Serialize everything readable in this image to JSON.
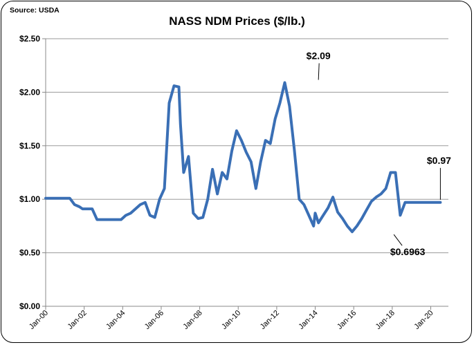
{
  "source_note": "Source: USDA",
  "chart_data": {
    "type": "line",
    "title": "NASS NDM Prices ($/lb.)",
    "xlabel": "",
    "ylabel": "",
    "ylim": [
      0,
      2.5
    ],
    "y_ticks": [
      0,
      0.5,
      1.0,
      1.5,
      2.0,
      2.5
    ],
    "y_tick_labels": [
      "$0.00",
      "$0.50",
      "$1.00",
      "$1.50",
      "$2.00",
      "$2.50"
    ],
    "x_range": [
      "2000-01",
      "2020-12"
    ],
    "x_tick_labels": [
      "Jan-00",
      "Jan-02",
      "Jan-04",
      "Jan-06",
      "Jan-08",
      "Jan-10",
      "Jan-12",
      "Jan-14",
      "Jan-16",
      "Jan-18",
      "Jan-20"
    ],
    "x_tick_dates": [
      "2000-01",
      "2002-01",
      "2004-01",
      "2006-01",
      "2008-01",
      "2010-01",
      "2012-01",
      "2014-01",
      "2016-01",
      "2018-01",
      "2020-01"
    ],
    "gridlines": "horizontal",
    "line_color": "#3a6fb5",
    "series": [
      {
        "x": [
          "2000-01",
          "2000-04",
          "2000-07",
          "2000-10",
          "2001-01",
          "2001-04",
          "2001-07",
          "2001-10",
          "2001-12",
          "2002-03",
          "2002-06",
          "2002-09",
          "2002-12",
          "2003-03",
          "2003-06",
          "2003-09",
          "2003-12",
          "2004-03",
          "2004-06",
          "2004-09",
          "2004-12",
          "2005-03",
          "2005-06",
          "2005-09",
          "2005-12",
          "2006-03",
          "2006-06",
          "2006-09",
          "2006-12",
          "2007-01",
          "2007-03",
          "2007-06",
          "2007-09",
          "2007-12",
          "2008-03",
          "2008-06",
          "2008-09",
          "2008-12",
          "2009-03",
          "2009-06",
          "2009-09",
          "2009-12",
          "2010-03",
          "2010-06",
          "2010-09",
          "2010-12",
          "2011-03",
          "2011-06",
          "2011-09",
          "2011-12",
          "2012-03",
          "2012-06",
          "2012-09",
          "2012-12",
          "2013-03",
          "2013-06",
          "2013-09",
          "2013-12",
          "2014-01",
          "2014-03",
          "2014-06",
          "2014-09",
          "2014-12",
          "2015-03",
          "2015-06",
          "2015-09",
          "2015-12",
          "2016-03",
          "2016-06",
          "2016-09",
          "2016-12",
          "2017-03",
          "2017-06",
          "2017-09",
          "2017-12",
          "2018-03",
          "2018-06",
          "2018-09",
          "2018-12",
          "2019-03",
          "2019-06",
          "2019-09",
          "2019-12",
          "2020-01",
          "2020-03",
          "2020-05",
          "2020-07"
        ],
        "y": [
          1.01,
          1.01,
          1.01,
          1.01,
          1.01,
          1.01,
          0.95,
          0.93,
          0.91,
          0.91,
          0.91,
          0.81,
          0.81,
          0.81,
          0.81,
          0.81,
          0.81,
          0.85,
          0.87,
          0.91,
          0.95,
          0.97,
          0.85,
          0.83,
          1.0,
          1.1,
          1.9,
          2.06,
          2.05,
          1.7,
          1.25,
          1.4,
          0.87,
          0.82,
          0.83,
          1.0,
          1.28,
          1.05,
          1.25,
          1.19,
          1.45,
          1.64,
          1.55,
          1.44,
          1.35,
          1.1,
          1.35,
          1.55,
          1.52,
          1.75,
          1.9,
          2.09,
          1.87,
          1.46,
          1.0,
          0.95,
          0.85,
          0.75,
          0.87,
          0.78,
          0.85,
          0.92,
          1.02,
          0.88,
          0.82,
          0.75,
          0.6963,
          0.75,
          0.82,
          0.9,
          0.98,
          1.02,
          1.05,
          1.1,
          1.25,
          1.25,
          0.85,
          0.97,
          0.97,
          0.97,
          0.97,
          0.97,
          0.97,
          0.97,
          0.97,
          0.97,
          0.97
        ]
      }
    ],
    "annotations": [
      {
        "text": "$2.09",
        "x": "2014-03",
        "y": 2.09
      },
      {
        "text": "$0.97",
        "x": "2020-07",
        "y": 0.97
      },
      {
        "text": "$0.6963",
        "x": "2018-02",
        "y": 0.6963
      }
    ]
  }
}
